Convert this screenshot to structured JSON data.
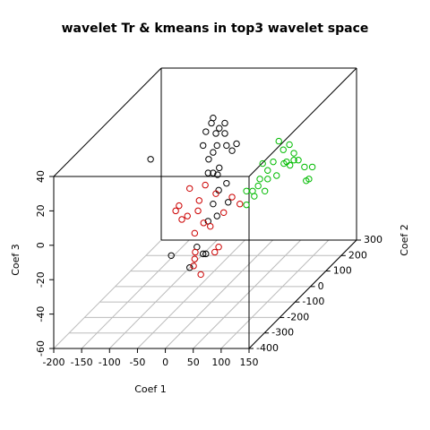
{
  "chart_data": {
    "type": "scatter3d",
    "title": "wavelet Tr & kmeans in top3 wavelet space",
    "xlabel": "Coef 1",
    "ylabel": "Coef 2",
    "zlabel": "Coef 3",
    "xlim": [
      -200,
      150
    ],
    "ylim": [
      -400,
      300
    ],
    "zlim": [
      -60,
      40
    ],
    "xticks": [
      -200,
      -150,
      -100,
      -50,
      0,
      50,
      100,
      150
    ],
    "yticks": [
      -400,
      -300,
      -200,
      -100,
      0,
      100,
      200,
      300
    ],
    "zticks": [
      -60,
      -40,
      -20,
      0,
      20,
      40
    ],
    "grid": true,
    "series": [
      {
        "color": "#000000",
        "x": [
          -52,
          -55,
          -31,
          -41,
          -65,
          -47,
          -31,
          -10,
          -28,
          -45,
          -70,
          -18,
          -52,
          -164,
          -60,
          -41,
          -52,
          -61,
          -44,
          -28,
          -42,
          -52,
          -25,
          -61,
          -45,
          -81,
          -127,
          -65,
          -70,
          -94
        ],
        "y": [
          100,
          100,
          100,
          100,
          100,
          100,
          100,
          100,
          100,
          100,
          100,
          100,
          100,
          100,
          100,
          100,
          100,
          100,
          100,
          100,
          100,
          100,
          100,
          100,
          100,
          100,
          100,
          100,
          100,
          100
        ],
        "z": [
          29,
          26,
          26,
          23,
          21,
          20,
          20,
          14,
          13,
          13,
          13,
          10,
          9,
          5,
          5,
          0,
          -3,
          -3,
          -4,
          -9,
          -13,
          -21,
          -20,
          -31,
          -28,
          -46,
          -51,
          -50,
          -50,
          -58
        ]
      },
      {
        "color": "#cc0000",
        "x": [
          -39,
          -11,
          8,
          -22,
          -58,
          -64,
          -43,
          -53,
          -24,
          -14,
          22,
          37,
          51,
          -30,
          -2,
          -29,
          13,
          6,
          -30,
          -32,
          -19
        ],
        "y": [
          -100,
          -100,
          -100,
          -100,
          -100,
          -100,
          -100,
          -100,
          -100,
          -100,
          -100,
          -100,
          -100,
          -100,
          -100,
          -100,
          -100,
          -100,
          -100,
          -100,
          -100
        ],
        "z": [
          6,
          8,
          3,
          -1,
          -4,
          -7,
          -10,
          -12,
          -7,
          -14,
          -8,
          1,
          -3,
          -20,
          -16,
          -31,
          -28,
          -31,
          -35,
          -39,
          -44
        ]
      },
      {
        "color": "#00bb00",
        "x": [
          52,
          71,
          60,
          79,
          87,
          66,
          61,
          72,
          98,
          112,
          42,
          32,
          23,
          48,
          32,
          18,
          15,
          27,
          5,
          -6,
          8,
          -6,
          106,
          101,
          79
        ],
        "y": [
          150,
          150,
          150,
          150,
          150,
          150,
          150,
          150,
          150,
          150,
          150,
          150,
          150,
          150,
          150,
          150,
          150,
          150,
          150,
          150,
          150,
          150,
          150,
          150,
          150
        ],
        "z": [
          11,
          9,
          6,
          4,
          0,
          -1,
          -2,
          -3,
          -4,
          -4,
          -1,
          -6,
          -2,
          -9,
          -11,
          -11,
          -15,
          -18,
          -18,
          -18,
          -21,
          -26,
          -11,
          -12,
          0
        ]
      }
    ]
  }
}
